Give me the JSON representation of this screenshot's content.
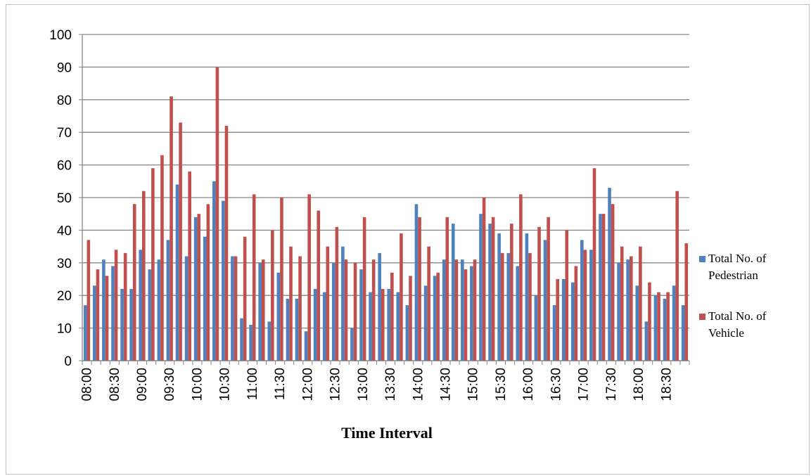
{
  "chart_data": {
    "type": "bar",
    "x_label": "Time  Interval",
    "categories": [
      "08:00",
      null,
      null,
      "08:30",
      null,
      null,
      "09:00",
      null,
      null,
      "09:30",
      null,
      null,
      "10:00",
      null,
      null,
      "10:30",
      null,
      null,
      "11:00",
      null,
      null,
      "11:30",
      null,
      null,
      "12:00",
      null,
      null,
      "12:30",
      null,
      null,
      "13:00",
      null,
      null,
      "13:30",
      null,
      null,
      "14:00",
      null,
      null,
      "14:30",
      null,
      null,
      "15:00",
      null,
      null,
      "15:30",
      null,
      null,
      "16:00",
      null,
      null,
      "16:30",
      null,
      null,
      "17:00",
      null,
      null,
      "17:30",
      null,
      null,
      "18:00",
      null,
      null,
      "18:30",
      null,
      null
    ],
    "series": [
      {
        "name": "Total No. of Pedestrian",
        "color": "#4f81bd",
        "values": [
          17,
          23,
          31,
          29,
          22,
          22,
          34,
          28,
          31,
          37,
          54,
          32,
          44,
          38,
          55,
          49,
          32,
          13,
          11,
          30,
          12,
          27,
          19,
          19,
          9,
          22,
          21,
          30,
          35,
          10,
          28,
          21,
          33,
          22,
          21,
          17,
          48,
          23,
          26,
          31,
          42,
          31,
          29,
          45,
          42,
          39,
          33,
          29,
          39,
          20,
          37,
          17,
          25,
          24,
          37,
          34,
          45,
          53,
          30,
          31,
          23,
          12,
          20,
          19,
          23,
          17
        ]
      },
      {
        "name": "Total No. of Vehicle",
        "color": "#c0504d",
        "values": [
          37,
          28,
          26,
          34,
          33,
          48,
          52,
          59,
          63,
          81,
          73,
          58,
          45,
          48,
          90,
          72,
          32,
          38,
          51,
          31,
          40,
          50,
          35,
          32,
          51,
          46,
          35,
          41,
          31,
          30,
          44,
          31,
          22,
          27,
          39,
          26,
          44,
          35,
          27,
          44,
          31,
          28,
          31,
          50,
          44,
          33,
          42,
          51,
          33,
          41,
          44,
          25,
          40,
          29,
          34,
          59,
          45,
          48,
          35,
          32,
          35,
          24,
          21,
          21,
          52,
          36
        ]
      }
    ],
    "ylim": [
      0,
      100
    ],
    "yticks": [
      0,
      10,
      20,
      30,
      40,
      50,
      60,
      70,
      80,
      90,
      100
    ],
    "grid": true,
    "legend": "right"
  }
}
